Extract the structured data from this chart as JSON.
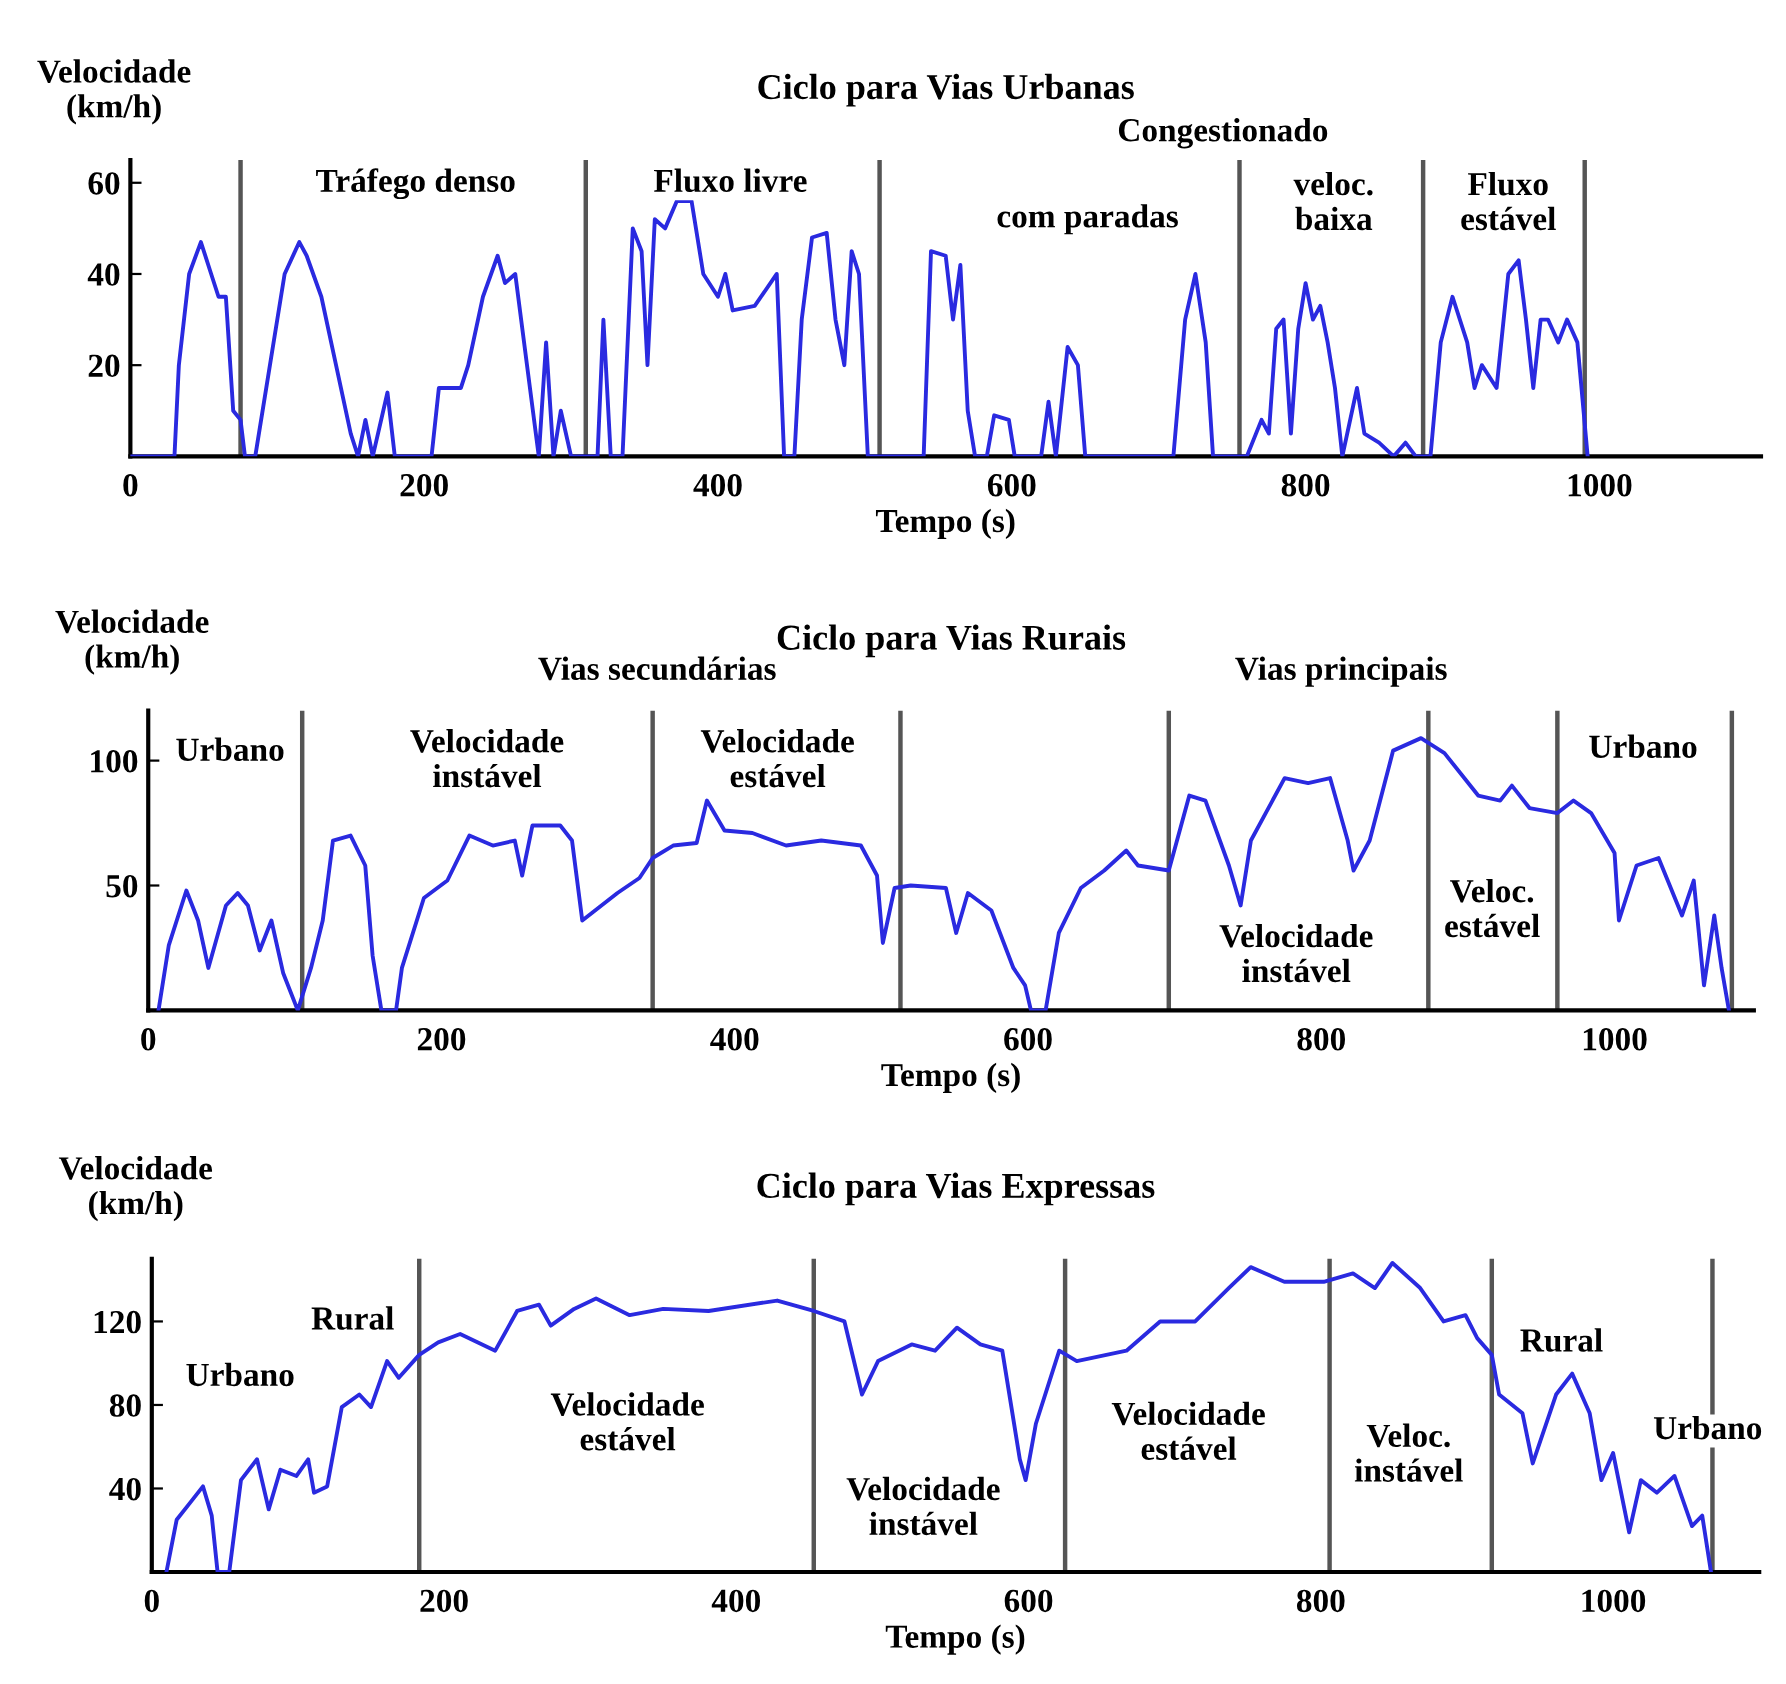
{
  "chart_data": [
    {
      "type": "line",
      "title": "Ciclo para Vias Urbanas",
      "xlabel": "Tempo (s)",
      "ylabel": "Velocidade\n(km/h)",
      "xlim": [
        0,
        1110
      ],
      "ylim": [
        0,
        65
      ],
      "xticks": [
        0,
        200,
        400,
        600,
        800,
        1000
      ],
      "yticks": [
        20,
        40,
        60
      ],
      "grid": false,
      "series": [
        {
          "color": "#2a2ae0",
          "x": [
            0,
            30,
            33,
            40,
            48,
            55,
            60,
            65,
            70,
            75,
            78,
            85,
            95,
            105,
            115,
            120,
            130,
            140,
            150,
            155,
            160,
            165,
            175,
            180,
            205,
            210,
            225,
            230,
            240,
            250,
            255,
            262,
            270,
            278,
            283,
            288,
            293,
            300,
            318,
            322,
            327,
            335,
            342,
            348,
            352,
            357,
            364,
            372,
            382,
            390,
            400,
            405,
            410,
            425,
            440,
            445,
            452,
            457,
            464,
            474,
            480,
            486,
            491,
            496,
            502,
            540,
            545,
            555,
            560,
            565,
            570,
            575,
            583,
            588,
            598,
            602,
            620,
            625,
            630,
            638,
            645,
            650,
            710,
            718,
            725,
            732,
            737,
            760,
            770,
            775,
            780,
            785,
            790,
            795,
            800,
            805,
            810,
            815,
            820,
            825,
            835,
            840,
            850,
            860,
            868,
            875,
            885,
            892,
            900,
            910,
            915,
            920,
            930,
            938,
            945,
            950,
            955,
            960,
            965,
            972,
            978,
            985,
            992
          ],
          "values": [
            0,
            0,
            20,
            40,
            47,
            40,
            35,
            35,
            10,
            8,
            0,
            0,
            20,
            40,
            47,
            44,
            35,
            20,
            5,
            0,
            8,
            0,
            14,
            0,
            0,
            15,
            15,
            20,
            35,
            44,
            38,
            40,
            20,
            0,
            25,
            0,
            10,
            0,
            0,
            30,
            0,
            0,
            50,
            45,
            20,
            52,
            50,
            56,
            56,
            40,
            35,
            40,
            32,
            33,
            40,
            0,
            0,
            30,
            48,
            49,
            30,
            20,
            45,
            40,
            0,
            0,
            45,
            44,
            30,
            42,
            10,
            0,
            0,
            9,
            8,
            0,
            0,
            12,
            0,
            24,
            20,
            0,
            0,
            30,
            40,
            25,
            0,
            0,
            8,
            5,
            28,
            30,
            5,
            28,
            38,
            30,
            33,
            25,
            15,
            0,
            15,
            5,
            3,
            0,
            3,
            0,
            0,
            25,
            35,
            25,
            15,
            20,
            15,
            40,
            43,
            30,
            15,
            30,
            30,
            25,
            30,
            25,
            0
          ]
        }
      ],
      "ref_lines": [
        {
          "axis": "x",
          "value": 75,
          "color": "#555555"
        },
        {
          "axis": "x",
          "value": 310,
          "color": "#555555"
        },
        {
          "axis": "x",
          "value": 510,
          "color": "#555555"
        },
        {
          "axis": "x",
          "value": 755,
          "color": "#555555"
        },
        {
          "axis": "x",
          "value": 880,
          "color": "#555555"
        },
        {
          "axis": "x",
          "value": 990,
          "color": "#555555"
        }
      ],
      "annotations": [
        "Tráfego denso",
        "Fluxo livre",
        "Congestionado",
        "com paradas",
        "veloc.\nbaixa",
        "Fluxo\nestável"
      ]
    },
    {
      "type": "line",
      "title": "Ciclo para Vias Rurais",
      "xlabel": "Tempo (s)",
      "ylabel": "Velocidade\n(km/h)",
      "xlim": [
        0,
        1095
      ],
      "ylim": [
        0,
        120
      ],
      "xticks": [
        0,
        200,
        400,
        600,
        800,
        1000
      ],
      "yticks": [
        50,
        100
      ],
      "grid": false,
      "series": [
        {
          "color": "#2a2ae0",
          "x": [
            7,
            14,
            26,
            34,
            41,
            53,
            61,
            68,
            76,
            84,
            92,
            102,
            111,
            119,
            126,
            138,
            148,
            153,
            159,
            169,
            173,
            188,
            204,
            219,
            235,
            250,
            255,
            262,
            281,
            289,
            296,
            320,
            335,
            344,
            358,
            374,
            381,
            393,
            412,
            435,
            459,
            486,
            497,
            501,
            509,
            520,
            544,
            551,
            559,
            575,
            590,
            598,
            602,
            612,
            621,
            636,
            652,
            667,
            675,
            696,
            710,
            721,
            737,
            745,
            752,
            775,
            791,
            806,
            818,
            822,
            833,
            849,
            868,
            884,
            907,
            922,
            930,
            942,
            961,
            972,
            984,
            1000,
            1003,
            1015,
            1030,
            1046,
            1054,
            1061,
            1068,
            1073,
            1078
          ],
          "values": [
            0,
            26,
            48,
            36,
            17,
            42,
            47,
            42,
            24,
            36,
            15,
            0,
            17,
            36,
            68,
            70,
            58,
            22,
            0,
            0,
            17,
            45,
            52,
            70,
            66,
            68,
            54,
            74,
            74,
            68,
            36,
            47,
            53,
            61,
            66,
            67,
            84,
            72,
            71,
            66,
            68,
            66,
            54,
            27,
            49,
            50,
            49,
            31,
            47,
            40,
            17,
            10,
            0,
            0,
            31,
            49,
            56,
            64,
            58,
            56,
            86,
            84,
            58,
            42,
            68,
            93,
            91,
            93,
            68,
            56,
            68,
            104,
            109,
            103,
            86,
            84,
            90,
            81,
            79,
            84,
            79,
            63,
            36,
            58,
            61,
            38,
            52,
            10,
            38,
            17,
            0
          ]
        }
      ],
      "ref_lines": [
        {
          "axis": "x",
          "value": 105,
          "color": "#555555"
        },
        {
          "axis": "x",
          "value": 344,
          "color": "#555555"
        },
        {
          "axis": "x",
          "value": 513,
          "color": "#555555"
        },
        {
          "axis": "x",
          "value": 696,
          "color": "#555555"
        },
        {
          "axis": "x",
          "value": 873,
          "color": "#555555"
        },
        {
          "axis": "x",
          "value": 961,
          "color": "#555555"
        },
        {
          "axis": "x",
          "value": 1080,
          "color": "#555555"
        }
      ],
      "annotations": [
        "Vias secundárias",
        "Vias principais",
        "Urbano",
        "Velocidade\ninstável",
        "Velocidade\nestável",
        "Velocidade\ninstável",
        "Veloc.\nestável",
        "Urbano"
      ]
    },
    {
      "type": "line",
      "title": "Ciclo para Vias Expressas",
      "xlabel": "Tempo (s)",
      "ylabel": "Velocidade\n(km/h)",
      "xlim": [
        0,
        1100
      ],
      "ylim": [
        0,
        150
      ],
      "xticks": [
        0,
        200,
        400,
        600,
        800,
        1000
      ],
      "yticks": [
        40,
        80,
        120
      ],
      "grid": false,
      "series": [
        {
          "color": "#2a2ae0",
          "x": [
            10,
            17,
            26,
            35,
            41,
            45,
            53,
            61,
            72,
            80,
            88,
            99,
            107,
            111,
            120,
            130,
            142,
            150,
            161,
            169,
            183,
            196,
            211,
            235,
            250,
            265,
            273,
            289,
            304,
            327,
            350,
            381,
            428,
            453,
            474,
            486,
            497,
            520,
            536,
            551,
            567,
            582,
            594,
            598,
            605,
            621,
            633,
            667,
            690,
            714,
            737,
            752,
            775,
            802,
            822,
            837,
            849,
            868,
            884,
            899,
            907,
            917,
            922,
            938,
            945,
            961,
            972,
            984,
            992,
            1000,
            1011,
            1019,
            1030,
            1042,
            1054,
            1061,
            1067
          ],
          "values": [
            0,
            25,
            33,
            41,
            27,
            0,
            0,
            44,
            54,
            30,
            49,
            46,
            54,
            38,
            41,
            79,
            85,
            79,
            101,
            93,
            104,
            110,
            114,
            106,
            125,
            128,
            118,
            126,
            131,
            123,
            126,
            125,
            130,
            125,
            120,
            85,
            101,
            109,
            106,
            117,
            109,
            106,
            54,
            44,
            71,
            106,
            101,
            106,
            120,
            120,
            136,
            146,
            139,
            139,
            143,
            136,
            148,
            136,
            120,
            123,
            112,
            104,
            85,
            76,
            52,
            85,
            95,
            76,
            44,
            57,
            19,
            44,
            38,
            46,
            22,
            27,
            0
          ]
        }
      ],
      "ref_lines": [
        {
          "axis": "x",
          "value": 183,
          "color": "#555555"
        },
        {
          "axis": "x",
          "value": 453,
          "color": "#555555"
        },
        {
          "axis": "x",
          "value": 625,
          "color": "#555555"
        },
        {
          "axis": "x",
          "value": 806,
          "color": "#555555"
        },
        {
          "axis": "x",
          "value": 917,
          "color": "#555555"
        },
        {
          "axis": "x",
          "value": 1068,
          "color": "#555555"
        }
      ],
      "annotations": [
        "Urbano",
        "Rural",
        "Velocidade\nestável",
        "Velocidade\ninstável",
        "Velocidade\nestável",
        "Veloc.\ninstável",
        "Rural",
        "Urbano"
      ]
    }
  ]
}
